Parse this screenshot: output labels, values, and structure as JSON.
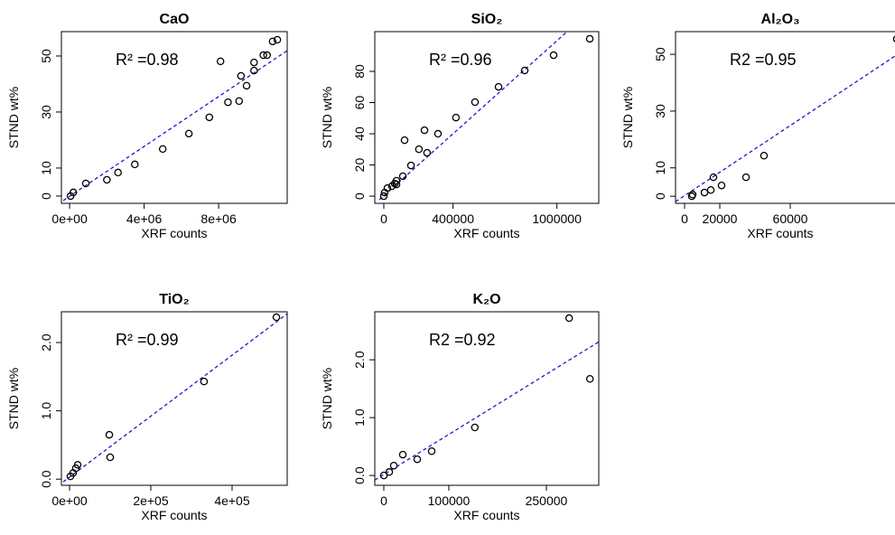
{
  "chart_data": [
    {
      "type": "scatter",
      "title": "CaO",
      "annotation": "R² =0.98",
      "x_label": "XRF counts",
      "y_label": "STND wt%",
      "x": [
        50000,
        200000,
        870000,
        2000000,
        2600000,
        3500000,
        5000000,
        6400000,
        7500000,
        8100000,
        8500000,
        9100000,
        9200000,
        9500000,
        9900000,
        9900000,
        10400000,
        10600000,
        10900000,
        11150000
      ],
      "y": [
        0,
        1.3,
        4.5,
        5.8,
        8.4,
        11.3,
        16.8,
        22.3,
        28.1,
        48.1,
        33.5,
        33.9,
        42.9,
        39.4,
        47.7,
        44.8,
        50.3,
        50.3,
        55.2,
        55.8
      ],
      "fit": {
        "x": [
          -340000,
          11680000
        ],
        "y": [
          -1.6,
          51.9
        ],
        "color": "#1a1acd"
      },
      "color": "#000000",
      "xlim": [
        -440000,
        11680000
      ],
      "ylim": [
        -2.6,
        58.7
      ],
      "xticks": [
        {
          "value": 0,
          "label": "0e+00"
        },
        {
          "value": 4000000,
          "label": "4e+06"
        },
        {
          "value": 8000000,
          "label": "8e+06"
        }
      ],
      "yticks": [
        0,
        10,
        30,
        50
      ]
    },
    {
      "type": "scatter",
      "title": "SiO₂",
      "annotation": "R² =0.96",
      "x_label": "XRF counts",
      "y_label": "STND wt%",
      "x": [
        0,
        5000,
        21000,
        47000,
        63000,
        73000,
        73000,
        110000,
        120000,
        157000,
        203000,
        235000,
        250000,
        313000,
        417000,
        527000,
        663000,
        814000,
        981000,
        1190000
      ],
      "y": [
        0,
        2.3,
        5.2,
        6.4,
        8.1,
        9.9,
        7.5,
        12.8,
        35.9,
        19.7,
        30.1,
        42.3,
        27.8,
        40.0,
        50.4,
        60.3,
        70.1,
        80.6,
        90.4,
        100.9
      ],
      "fit": {
        "x": [
          -26000,
          1059000
        ],
        "y": [
          -2.3,
          105.5
        ],
        "color": "#1a1acd"
      },
      "color": "#000000",
      "xlim": [
        -52000,
        1242000
      ],
      "ylim": [
        -4.6,
        105.5
      ],
      "xticks": [
        0,
        400000,
        1000000
      ],
      "yticks": [
        0,
        20,
        40,
        60,
        80
      ]
    },
    {
      "type": "scatter",
      "title": "Al₂O₃",
      "annotation": "R2 =0.95",
      "x_label": "XRF counts",
      "y_label": "STND wt%",
      "x": [
        4100,
        4600,
        11300,
        14900,
        16400,
        21000,
        34900,
        45100,
        120500
      ],
      "y": [
        0,
        0.6,
        1.3,
        2.2,
        6.7,
        3.8,
        6.7,
        14.3,
        55.4
      ],
      "fit": {
        "x": [
          -5128,
          119500
        ],
        "y": [
          -1.9,
          49.4
        ],
        "color": "#1a1acd"
      },
      "color": "#000000",
      "xlim": [
        -5128,
        124100
      ],
      "ylim": [
        -2.5,
        58
      ],
      "xticks": [
        0,
        20000,
        60000
      ],
      "yticks": [
        0,
        10,
        30,
        50
      ]
    },
    {
      "type": "scatter",
      "title": "TiO₂",
      "annotation": "R² =0.99",
      "x_label": "XRF counts",
      "y_label": "STND wt%",
      "x": [
        2200,
        8900,
        15600,
        20000,
        97800,
        100000,
        331000,
        509000
      ],
      "y": [
        0.04,
        0.09,
        0.16,
        0.21,
        0.65,
        0.32,
        1.43,
        2.37
      ],
      "fit": {
        "x": [
          -15600,
          535600
        ],
        "y": [
          -0.04,
          2.42
        ],
        "color": "#1a1acd"
      },
      "color": "#000000",
      "xlim": [
        -20000,
        535600
      ],
      "ylim": [
        -0.09,
        2.45
      ],
      "xticks": [
        {
          "value": 0,
          "label": "0e+00"
        },
        {
          "value": 200000,
          "label": "2e+05"
        },
        {
          "value": 400000,
          "label": "4e+05"
        }
      ],
      "yticks": [
        {
          "value": 0,
          "label": "0.0"
        },
        {
          "value": 1,
          "label": "1.0"
        },
        {
          "value": 2,
          "label": "2.0"
        }
      ]
    },
    {
      "type": "scatter",
      "title": "K₂O",
      "annotation": "R2 =0.92",
      "x_label": "XRF counts",
      "y_label": "STND wt%",
      "x": [
        0,
        8300,
        15300,
        29200,
        51400,
        73600,
        140000,
        285000,
        317000
      ],
      "y": [
        0,
        0.06,
        0.17,
        0.36,
        0.28,
        0.42,
        0.83,
        2.72,
        1.67
      ],
      "fit": {
        "x": [
          -13900,
          330600
        ],
        "y": [
          -0.08,
          2.31
        ],
        "color": "#1a1acd"
      },
      "color": "#000000",
      "xlim": [
        -13900,
        330600
      ],
      "ylim": [
        -0.17,
        2.83
      ],
      "xticks": [
        0,
        100000,
        250000
      ],
      "yticks": [
        {
          "value": 0,
          "label": "0.0"
        },
        {
          "value": 1,
          "label": "1.0"
        },
        {
          "value": 2,
          "label": "2.0"
        }
      ]
    }
  ]
}
